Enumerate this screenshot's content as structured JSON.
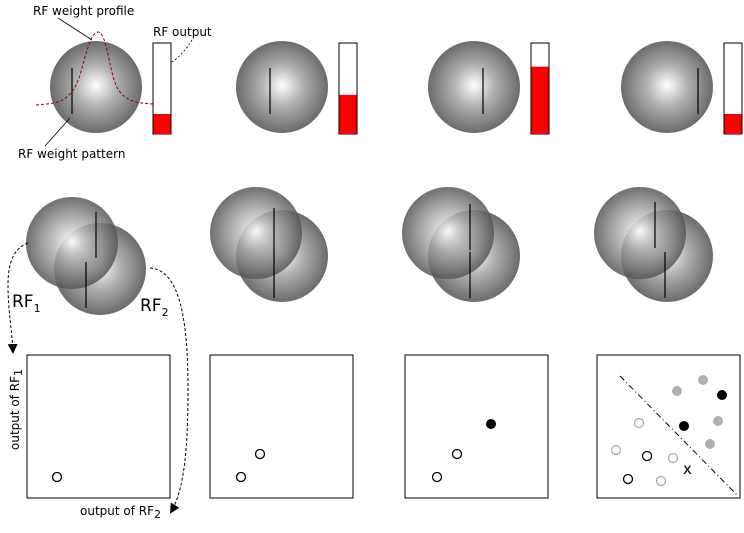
{
  "annotations": {
    "weight_profile": "RF weight profile",
    "output": "RF output",
    "weight_pattern": "RF weight pattern"
  },
  "rf_labels": {
    "rf1_base": "RF",
    "rf1_sub": "1",
    "rf2_base": "RF",
    "rf2_sub": "2"
  },
  "axes": {
    "y_base": "output of RF",
    "y_sub": "1",
    "x_base": "output of RF",
    "x_sub": "2"
  },
  "row1": {
    "bar_levels": [
      0.22,
      0.43,
      0.74,
      0.22
    ]
  },
  "colors": {
    "bar_fill": "#ff0000",
    "profile_curve": "#8b0000",
    "gray_point": "#b0b0b0"
  },
  "scatter": {
    "panel2_point": "open",
    "panel3_point": "filled-black",
    "panel4_marker": "x"
  }
}
